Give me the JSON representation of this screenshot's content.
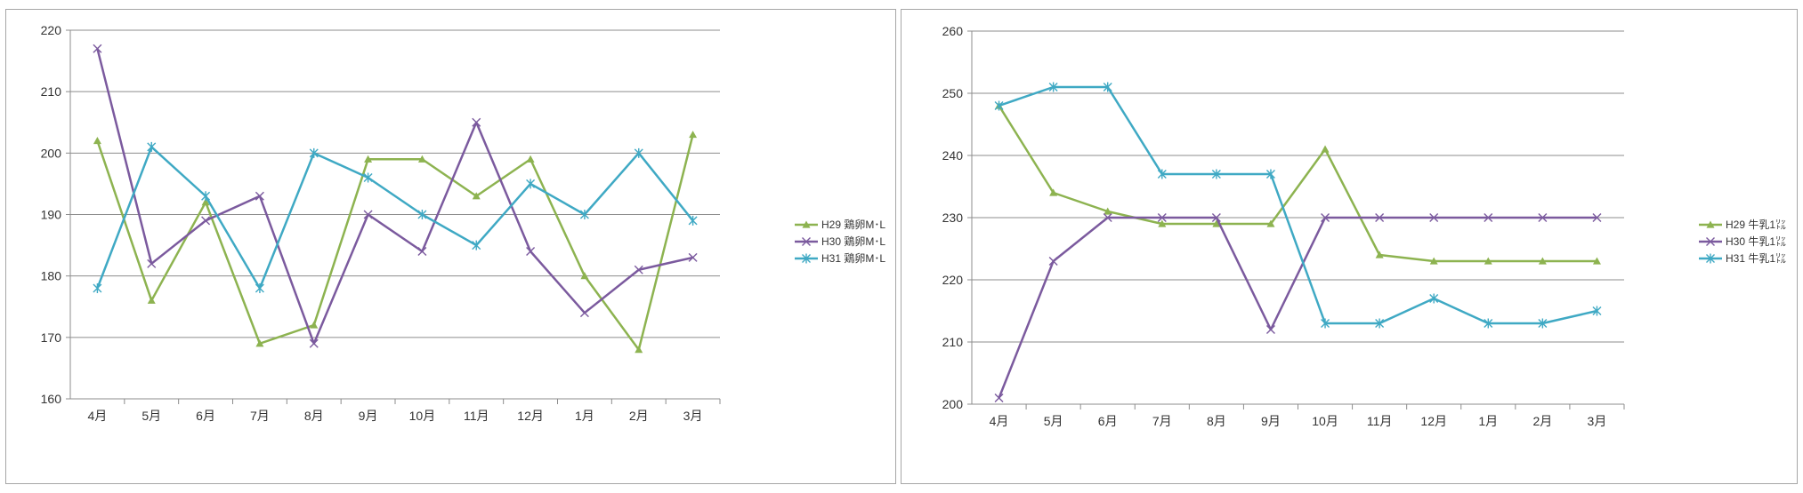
{
  "chart_data": [
    {
      "type": "line",
      "categories": [
        "4月",
        "5月",
        "6月",
        "7月",
        "8月",
        "9月",
        "10月",
        "11月",
        "12月",
        "1月",
        "2月",
        "3月"
      ],
      "ylim": [
        160,
        220
      ],
      "yticks": [
        160,
        170,
        180,
        190,
        200,
        210,
        220
      ],
      "grid": true,
      "legend": "right",
      "series": [
        {
          "name": "H29 鶏卵M･L",
          "color": "#8db350",
          "marker": "triangle",
          "values": [
            202,
            176,
            192,
            169,
            172,
            199,
            199,
            193,
            199,
            180,
            168,
            203
          ]
        },
        {
          "name": "H30 鶏卵M･L",
          "color": "#7b5a9e",
          "marker": "x",
          "values": [
            217,
            182,
            189,
            193,
            169,
            190,
            184,
            205,
            184,
            174,
            181,
            183
          ]
        },
        {
          "name": "H31 鶏卵M･L",
          "color": "#3fa9c4",
          "marker": "star",
          "values": [
            178,
            201,
            193,
            178,
            200,
            196,
            190,
            185,
            195,
            190,
            200,
            189
          ]
        }
      ]
    },
    {
      "type": "line",
      "categories": [
        "4月",
        "5月",
        "6月",
        "7月",
        "8月",
        "9月",
        "10月",
        "11月",
        "12月",
        "1月",
        "2月",
        "3月"
      ],
      "ylim": [
        200,
        260
      ],
      "yticks": [
        200,
        210,
        220,
        230,
        240,
        250,
        260
      ],
      "grid": true,
      "legend": "right",
      "series": [
        {
          "name": "H29 牛乳1㍑",
          "color": "#8db350",
          "marker": "triangle",
          "values": [
            248,
            234,
            231,
            229,
            229,
            229,
            241,
            224,
            223,
            223,
            223,
            223
          ]
        },
        {
          "name": "H30 牛乳1㍑",
          "color": "#7b5a9e",
          "marker": "x",
          "values": [
            201,
            223,
            230,
            230,
            230,
            212,
            230,
            230,
            230,
            230,
            230,
            230
          ]
        },
        {
          "name": "H31 牛乳1㍑",
          "color": "#3fa9c4",
          "marker": "star",
          "values": [
            248,
            251,
            251,
            237,
            237,
            237,
            213,
            213,
            217,
            213,
            213,
            215
          ]
        }
      ]
    }
  ]
}
